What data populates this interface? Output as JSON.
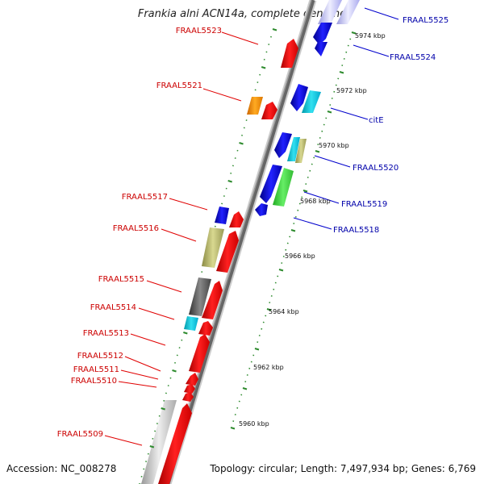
{
  "title": "Frankia alni ACN14a, complete genome",
  "footer": {
    "accession": "Accession: NC_008278",
    "topology": "Topology: circular; Length: 7,497,934 bp; Genes: 6,769"
  },
  "colors": {
    "backbone_dark": "#666666",
    "backbone_light": "#bbbbbb",
    "tick": "#2e8b2e",
    "leader_left": "#e00000",
    "leader_right": "#0000cc",
    "label_left": "#cc0000",
    "label_right": "#0000aa"
  },
  "scale_labels": [
    "5960 kbp",
    "5962 kbp",
    "5964 kbp",
    "5966 kbp",
    "5968 kbp",
    "5970 kbp",
    "5972 kbp",
    "5974 kbp"
  ],
  "left_labels": [
    "FRAAL5523",
    "FRAAL5521",
    "FRAAL5517",
    "FRAAL5516",
    "FRAAL5515",
    "FRAAL5514",
    "FRAAL5513",
    "FRAAL5512",
    "FRAAL5511",
    "FRAAL5510",
    "FRAAL5509"
  ],
  "right_labels": [
    "FRAAL5525",
    "FRAAL5524",
    "citE",
    "FRAAL5520",
    "FRAAL5519",
    "FRAAL5518"
  ]
}
